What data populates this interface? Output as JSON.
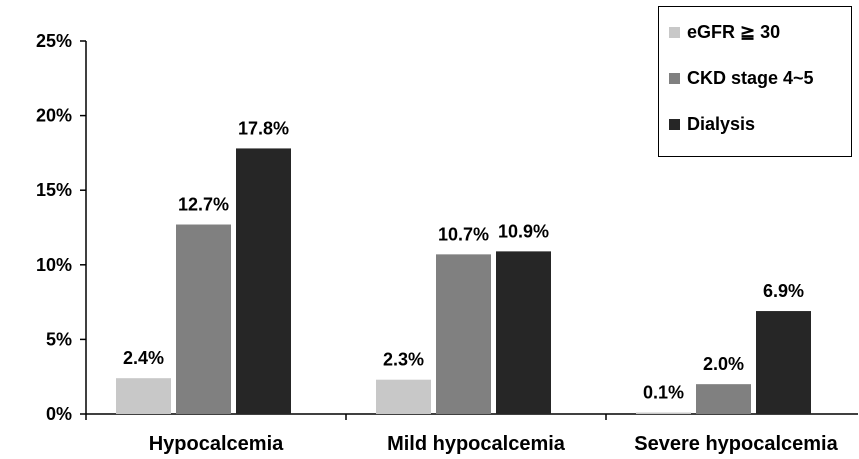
{
  "chart_data": {
    "type": "bar",
    "categories": [
      "Hypocalcemia",
      "Mild hypocalcemia",
      "Severe hypocalcemia"
    ],
    "series": [
      {
        "name": "eGFR ≧ 30",
        "values": [
          2.4,
          2.3,
          0.1
        ],
        "labels": [
          "2.4%",
          "2.3%",
          "0.1%"
        ],
        "color": "#c8c8c8"
      },
      {
        "name": "CKD stage 4~5",
        "values": [
          12.7,
          10.7,
          2.0
        ],
        "labels": [
          "12.7%",
          "10.7%",
          "2.0%"
        ],
        "color": "#808080"
      },
      {
        "name": "Dialysis",
        "values": [
          17.8,
          10.9,
          6.9
        ],
        "labels": [
          "17.8%",
          "10.9%",
          "6.9%"
        ],
        "color": "#262626"
      }
    ],
    "yticks": [
      "0%",
      "5%",
      "10%",
      "15%",
      "20%",
      "25%"
    ],
    "ylim": [
      0,
      25
    ],
    "grid": false,
    "legend_position": "top-right"
  }
}
